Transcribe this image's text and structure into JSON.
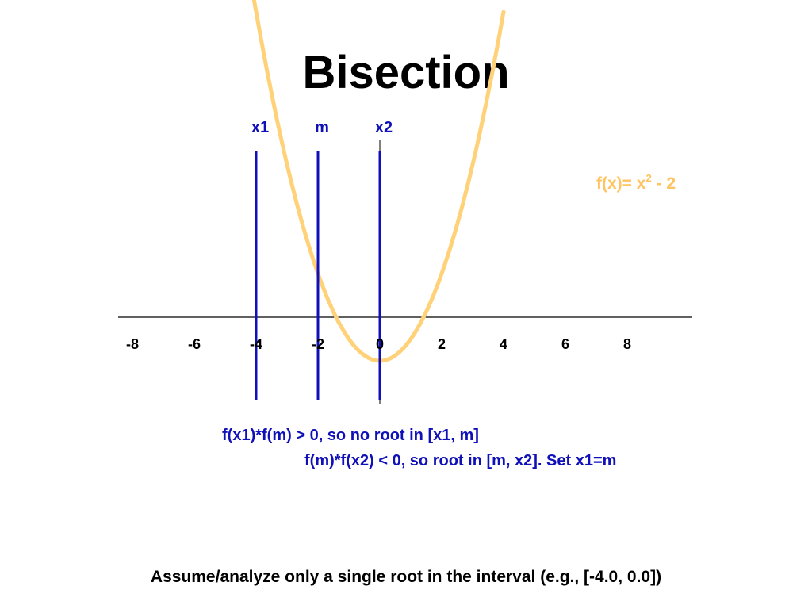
{
  "slide": {
    "title": "Bisection",
    "note_1": "f(x1)*f(m) > 0, so no root in [x1, m]",
    "note_2": "f(m)*f(x2) < 0, so root in [m, x2]. Set x1=m",
    "footer": "Assume/analyze only a single root in the interval (e.g., [-4.0, 0.0])"
  },
  "diagram": {
    "function_label": "f(x)= x",
    "function_label_sup": "2",
    "function_label_tail": " - 2",
    "curve": {
      "x_min": -4.2,
      "x_max": 4.0
    },
    "ticks": [
      -8,
      -6,
      -4,
      -2,
      0,
      2,
      4,
      6,
      8
    ],
    "markers": [
      {
        "label": "x1",
        "x": -4.0
      },
      {
        "label": "m",
        "x": -2.0
      },
      {
        "label": "x2",
        "x": 0.0
      }
    ],
    "colors": {
      "curve": "#ffd27a",
      "markers": "#1010b8",
      "marker_labels": "#1010b8",
      "function_label": "#ffc462",
      "axis": "#000000"
    }
  }
}
